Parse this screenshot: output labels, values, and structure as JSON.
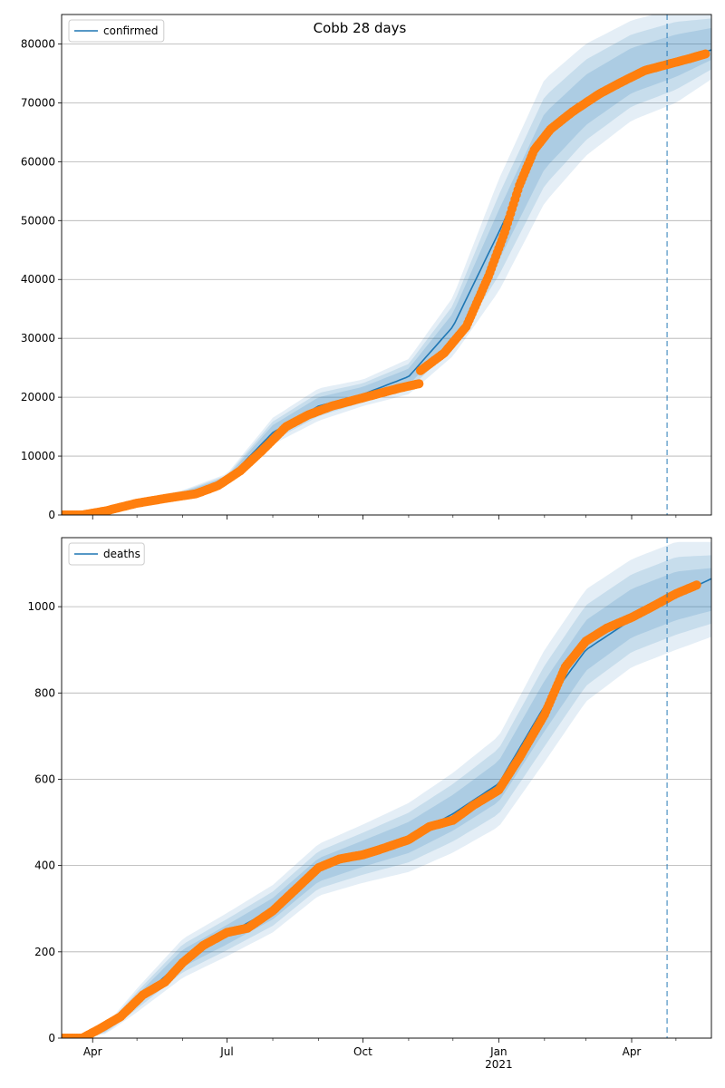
{
  "chart_data": [
    {
      "type": "line",
      "title": "Cobb 28 days",
      "legend": {
        "entries": [
          "confirmed"
        ],
        "placement": "top-left"
      },
      "xlabel": "",
      "ylabel": "",
      "x_ticks": [
        "Apr",
        "Jul",
        "Oct",
        "Jan\n2021",
        "Apr"
      ],
      "x_range": [
        "2020-03-11",
        "2021-05-25"
      ],
      "y_ticks": [
        0,
        10000,
        20000,
        30000,
        40000,
        50000,
        60000,
        70000,
        80000
      ],
      "ylim": [
        0,
        85000
      ],
      "grid": "y",
      "forecast_start": "2021-04-25",
      "series": [
        {
          "name": "confirmed",
          "kind": "fit-line",
          "color": "#1f77b4",
          "x": [
            "2020-03-11",
            "2020-04-01",
            "2020-05-01",
            "2020-06-01",
            "2020-07-01",
            "2020-08-01",
            "2020-09-01",
            "2020-10-01",
            "2020-11-01",
            "2020-12-01",
            "2021-01-01",
            "2021-02-01",
            "2021-03-01",
            "2021-04-01",
            "2021-05-01",
            "2021-05-25"
          ],
          "y": [
            0,
            500,
            2000,
            3500,
            6000,
            14000,
            18500,
            20500,
            23500,
            32000,
            48000,
            64500,
            69500,
            74000,
            77000,
            79000
          ]
        },
        {
          "name": "",
          "kind": "observed-points",
          "color": "#ff7f0e",
          "x": [
            "2020-03-11",
            "2020-03-25",
            "2020-04-10",
            "2020-05-01",
            "2020-05-20",
            "2020-06-10",
            "2020-06-25",
            "2020-07-10",
            "2020-07-25",
            "2020-08-10",
            "2020-08-25",
            "2020-09-10",
            "2020-09-25",
            "2020-10-10",
            "2020-10-25",
            "2020-11-08",
            "2020-11-09",
            "2020-11-25",
            "2020-12-10",
            "2020-12-25",
            "2021-01-05",
            "2021-01-15",
            "2021-01-25",
            "2021-02-05",
            "2021-02-20",
            "2021-03-10",
            "2021-03-25",
            "2021-04-10",
            "2021-04-25",
            "2021-05-10",
            "2021-05-21"
          ],
          "y": [
            0,
            0,
            700,
            2000,
            2800,
            3600,
            5000,
            7500,
            11000,
            15000,
            17000,
            18500,
            19500,
            20500,
            21500,
            22300,
            24500,
            27500,
            32000,
            40500,
            48000,
            56000,
            62000,
            65500,
            68500,
            71500,
            73500,
            75500,
            76500,
            77500,
            78300
          ]
        }
      ],
      "bands": [
        {
          "name": "",
          "color": "#1f77b4",
          "x": [
            "2020-03-11",
            "2020-04-01",
            "2020-05-01",
            "2020-06-01",
            "2020-07-01",
            "2020-08-01",
            "2020-09-01",
            "2020-10-01",
            "2020-11-01",
            "2020-12-01",
            "2021-01-01",
            "2021-02-01",
            "2021-03-01",
            "2021-04-01",
            "2021-05-01",
            "2021-05-25"
          ],
          "lower": [
            0,
            300,
            1600,
            3000,
            5200,
            12000,
            16000,
            18500,
            20500,
            27000,
            38000,
            53000,
            61000,
            67000,
            70000,
            74000
          ],
          "upper": [
            0,
            700,
            2400,
            4200,
            7000,
            16500,
            21500,
            23000,
            26500,
            37000,
            57000,
            74000,
            80000,
            84000,
            86000,
            86000
          ]
        }
      ]
    },
    {
      "type": "line",
      "title": "",
      "legend": {
        "entries": [
          "deaths"
        ],
        "placement": "top-left"
      },
      "xlabel": "",
      "ylabel": "",
      "x_ticks": [
        "Apr",
        "Jul",
        "Oct",
        "Jan\n2021",
        "Apr"
      ],
      "x_range": [
        "2020-03-11",
        "2021-05-25"
      ],
      "y_ticks": [
        0,
        200,
        400,
        600,
        800,
        1000
      ],
      "ylim": [
        0,
        1160
      ],
      "grid": "y",
      "forecast_start": "2021-04-25",
      "series": [
        {
          "name": "deaths",
          "kind": "fit-line",
          "color": "#1f77b4",
          "x": [
            "2020-03-11",
            "2020-03-25",
            "2020-04-10",
            "2020-05-01",
            "2020-06-01",
            "2020-07-01",
            "2020-08-01",
            "2020-09-01",
            "2020-10-01",
            "2020-11-01",
            "2020-12-01",
            "2021-01-01",
            "2021-02-01",
            "2021-03-01",
            "2021-04-01",
            "2021-05-01",
            "2021-05-25"
          ],
          "y": [
            0,
            2,
            20,
            85,
            180,
            240,
            300,
            390,
            425,
            465,
            520,
            590,
            770,
            900,
            970,
            1025,
            1065
          ]
        },
        {
          "name": "",
          "kind": "observed-points",
          "color": "#ff7f0e",
          "x": [
            "2020-03-11",
            "2020-03-25",
            "2020-04-05",
            "2020-04-20",
            "2020-05-05",
            "2020-05-20",
            "2020-06-01",
            "2020-06-15",
            "2020-07-01",
            "2020-07-15",
            "2020-08-01",
            "2020-08-15",
            "2020-09-01",
            "2020-09-15",
            "2020-10-01",
            "2020-10-15",
            "2020-11-01",
            "2020-11-15",
            "2020-12-01",
            "2020-12-15",
            "2021-01-01",
            "2021-01-15",
            "2021-02-01",
            "2021-02-15",
            "2021-03-01",
            "2021-03-15",
            "2021-04-01",
            "2021-04-15",
            "2021-05-01",
            "2021-05-15"
          ],
          "y": [
            0,
            0,
            20,
            50,
            100,
            130,
            175,
            215,
            245,
            255,
            295,
            340,
            395,
            415,
            425,
            440,
            460,
            490,
            505,
            540,
            575,
            650,
            750,
            860,
            920,
            950,
            975,
            1000,
            1030,
            1050
          ]
        }
      ],
      "bands": [
        {
          "name": "",
          "color": "#1f77b4",
          "x": [
            "2020-03-11",
            "2020-03-25",
            "2020-04-10",
            "2020-05-01",
            "2020-06-01",
            "2020-07-01",
            "2020-08-01",
            "2020-09-01",
            "2020-10-01",
            "2020-11-01",
            "2020-12-01",
            "2021-01-01",
            "2021-02-01",
            "2021-03-01",
            "2021-04-01",
            "2021-05-01",
            "2021-05-25"
          ],
          "lower": [
            0,
            0,
            10,
            60,
            140,
            190,
            245,
            330,
            360,
            385,
            430,
            490,
            640,
            780,
            860,
            900,
            930
          ],
          "upper": [
            0,
            5,
            30,
            115,
            230,
            290,
            355,
            450,
            495,
            545,
            615,
            700,
            900,
            1040,
            1110,
            1150,
            1150
          ]
        }
      ]
    }
  ]
}
